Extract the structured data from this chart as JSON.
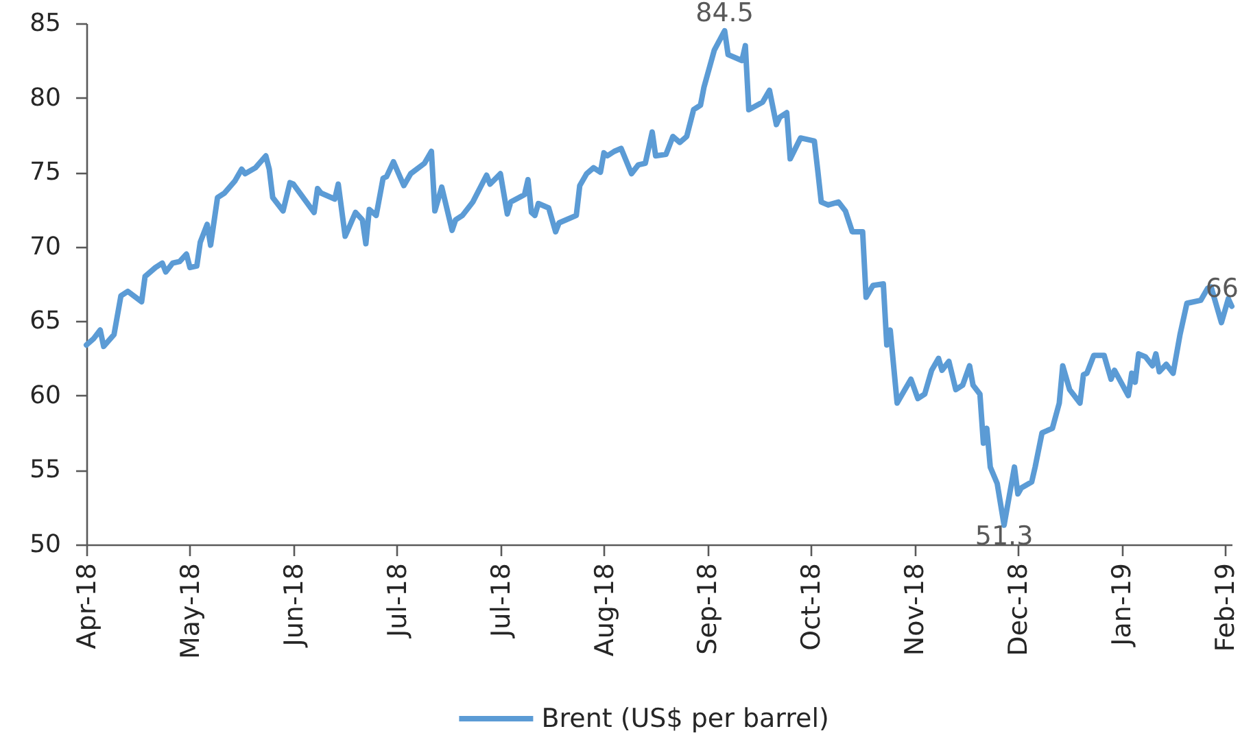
{
  "chart_data": {
    "type": "line",
    "x": [
      "2018-04-02",
      "2018-04-04",
      "2018-04-06",
      "2018-04-07",
      "2018-04-10",
      "2018-04-12",
      "2018-04-14",
      "2018-04-18",
      "2018-04-19",
      "2018-04-22",
      "2018-04-24",
      "2018-04-25",
      "2018-04-27",
      "2018-04-29",
      "2018-05-01",
      "2018-05-02",
      "2018-05-04",
      "2018-05-05",
      "2018-05-07",
      "2018-05-08",
      "2018-05-10",
      "2018-05-12",
      "2018-05-15",
      "2018-05-17",
      "2018-05-18",
      "2018-05-21",
      "2018-05-24",
      "2018-05-25",
      "2018-05-26",
      "2018-05-29",
      "2018-05-31",
      "2018-06-01",
      "2018-06-07",
      "2018-06-08",
      "2018-06-09",
      "2018-06-13",
      "2018-06-14",
      "2018-06-16",
      "2018-06-19",
      "2018-06-21",
      "2018-06-22",
      "2018-06-23",
      "2018-06-25",
      "2018-06-27",
      "2018-06-28",
      "2018-06-30",
      "2018-07-03",
      "2018-07-05",
      "2018-07-09",
      "2018-07-11",
      "2018-07-12",
      "2018-07-14",
      "2018-07-17",
      "2018-07-18",
      "2018-07-20",
      "2018-07-23",
      "2018-07-27",
      "2018-07-28",
      "2018-07-31",
      "2018-08-02",
      "2018-08-03",
      "2018-08-07",
      "2018-08-08",
      "2018-08-09",
      "2018-08-10",
      "2018-08-11",
      "2018-08-14",
      "2018-08-16",
      "2018-08-17",
      "2018-08-22",
      "2018-08-23",
      "2018-08-25",
      "2018-08-27",
      "2018-08-29",
      "2018-08-30",
      "2018-08-31",
      "2018-09-02",
      "2018-09-04",
      "2018-09-07",
      "2018-09-09",
      "2018-09-11",
      "2018-09-13",
      "2018-09-14",
      "2018-09-17",
      "2018-09-19",
      "2018-09-21",
      "2018-09-23",
      "2018-09-25",
      "2018-09-27",
      "2018-09-28",
      "2018-10-01",
      "2018-10-04",
      "2018-10-05",
      "2018-10-09",
      "2018-10-10",
      "2018-10-11",
      "2018-10-15",
      "2018-10-17",
      "2018-10-19",
      "2018-10-20",
      "2018-10-22",
      "2018-10-23",
      "2018-10-26",
      "2018-10-30",
      "2018-10-31",
      "2018-11-01",
      "2018-11-03",
      "2018-11-06",
      "2018-11-08",
      "2018-11-10",
      "2018-11-13",
      "2018-11-14",
      "2018-11-16",
      "2018-11-19",
      "2018-11-20",
      "2018-11-21",
      "2018-11-23",
      "2018-11-25",
      "2018-11-27",
      "2018-11-29",
      "2018-12-01",
      "2018-12-03",
      "2018-12-05",
      "2018-12-06",
      "2018-12-08",
      "2018-12-10",
      "2018-12-12",
      "2018-12-14",
      "2018-12-15",
      "2018-12-17",
      "2018-12-18",
      "2018-12-19",
      "2018-12-20",
      "2018-12-22",
      "2018-12-24",
      "2018-12-27",
      "2018-12-28",
      "2018-12-29",
      "2019-01-01",
      "2019-01-02",
      "2019-01-04",
      "2019-01-07",
      "2019-01-09",
      "2019-01-10",
      "2019-01-12",
      "2019-01-15",
      "2019-01-16",
      "2019-01-17",
      "2019-01-19",
      "2019-01-22",
      "2019-01-24",
      "2019-01-25",
      "2019-01-29",
      "2019-01-30",
      "2019-01-31",
      "2019-02-01",
      "2019-02-03",
      "2019-02-05",
      "2019-02-06",
      "2019-02-07",
      "2019-02-09",
      "2019-02-11",
      "2019-02-13",
      "2019-02-15",
      "2019-02-19",
      "2019-02-21",
      "2019-02-22",
      "2019-02-25",
      "2019-02-27",
      "2019-02-28"
    ],
    "series": [
      {
        "name": "Brent (US$ per barrel)",
        "color": "#5b9bd5",
        "values": [
          63.4,
          63.8,
          64.4,
          63.3,
          64.1,
          66.7,
          67.0,
          66.3,
          68.0,
          68.6,
          68.9,
          68.3,
          68.9,
          69.0,
          69.5,
          68.6,
          68.7,
          70.3,
          71.5,
          70.1,
          73.3,
          73.6,
          74.4,
          75.2,
          74.9,
          75.3,
          76.1,
          75.2,
          73.3,
          72.4,
          74.3,
          74.2,
          72.3,
          73.9,
          73.6,
          73.2,
          74.2,
          70.7,
          72.3,
          71.8,
          70.2,
          72.5,
          72.1,
          74.6,
          74.7,
          75.7,
          74.1,
          74.9,
          75.6,
          76.4,
          72.4,
          74.0,
          71.1,
          71.8,
          72.1,
          73.0,
          74.8,
          74.2,
          74.9,
          72.2,
          73.0,
          73.5,
          74.5,
          72.3,
          72.1,
          72.9,
          72.6,
          71.0,
          71.6,
          72.1,
          74.1,
          74.9,
          75.3,
          75.0,
          76.3,
          76.1,
          76.4,
          76.6,
          74.9,
          75.5,
          75.6,
          77.7,
          76.1,
          76.2,
          77.4,
          77.0,
          77.4,
          79.2,
          79.5,
          80.7,
          83.2,
          84.5,
          82.9,
          82.5,
          83.5,
          79.2,
          79.7,
          80.5,
          78.2,
          78.7,
          79.0,
          75.9,
          77.3,
          77.1,
          75.1,
          73.0,
          72.8,
          73.0,
          72.4,
          71.0,
          71.0,
          66.6,
          67.4,
          67.5,
          63.4,
          64.4,
          59.5,
          60.3,
          61.1,
          59.8,
          60.1,
          61.7,
          62.5,
          61.7,
          62.3,
          60.4,
          60.7,
          62.0,
          60.7,
          60.1,
          56.8,
          57.8,
          55.2,
          54.1,
          51.3,
          55.2,
          53.4,
          53.8,
          54.2,
          55.2,
          57.5,
          57.8,
          59.5,
          62.0,
          60.4,
          59.5,
          61.4,
          61.5,
          62.7,
          62.7,
          61.1,
          61.7,
          60.0,
          61.5,
          60.9,
          62.8,
          62.6,
          62.0,
          62.8,
          61.6,
          62.1,
          61.5,
          64.1,
          66.2,
          66.4,
          67.2,
          67.3,
          64.9,
          66.5,
          66.0
        ]
      }
    ],
    "xlim": [
      "2018-04-02",
      "2019-02-28"
    ],
    "xticks": [
      {
        "value": "2018-04-02",
        "label": "Apr-18"
      },
      {
        "value": "2018-05-02",
        "label": "May-18"
      },
      {
        "value": "2018-06-01",
        "label": "Jun-18"
      },
      {
        "value": "2018-07-01",
        "label": "Jul-18"
      },
      {
        "value": "2018-07-31",
        "label": "Jul-18"
      },
      {
        "value": "2018-08-30",
        "label": "Aug-18"
      },
      {
        "value": "2018-09-29",
        "label": "Sep-18"
      },
      {
        "value": "2018-10-29",
        "label": "Oct-18"
      },
      {
        "value": "2018-11-28",
        "label": "Nov-18"
      },
      {
        "value": "2018-12-28",
        "label": "Dec-18"
      },
      {
        "value": "2019-01-27",
        "label": "Jan-19"
      },
      {
        "value": "2019-02-26",
        "label": "Feb-19"
      }
    ],
    "ylim": [
      50,
      85
    ],
    "yticks": [
      50,
      55,
      60,
      65,
      70,
      75,
      80,
      85
    ],
    "annotations": [
      {
        "text": "84.5",
        "x": "2018-10-04",
        "y": 84.5
      },
      {
        "text": "51.3",
        "x": "2018-12-24",
        "y": 51.3
      },
      {
        "text": "66",
        "x": "2019-02-28",
        "y": 66
      }
    ],
    "legend": "bottom"
  }
}
